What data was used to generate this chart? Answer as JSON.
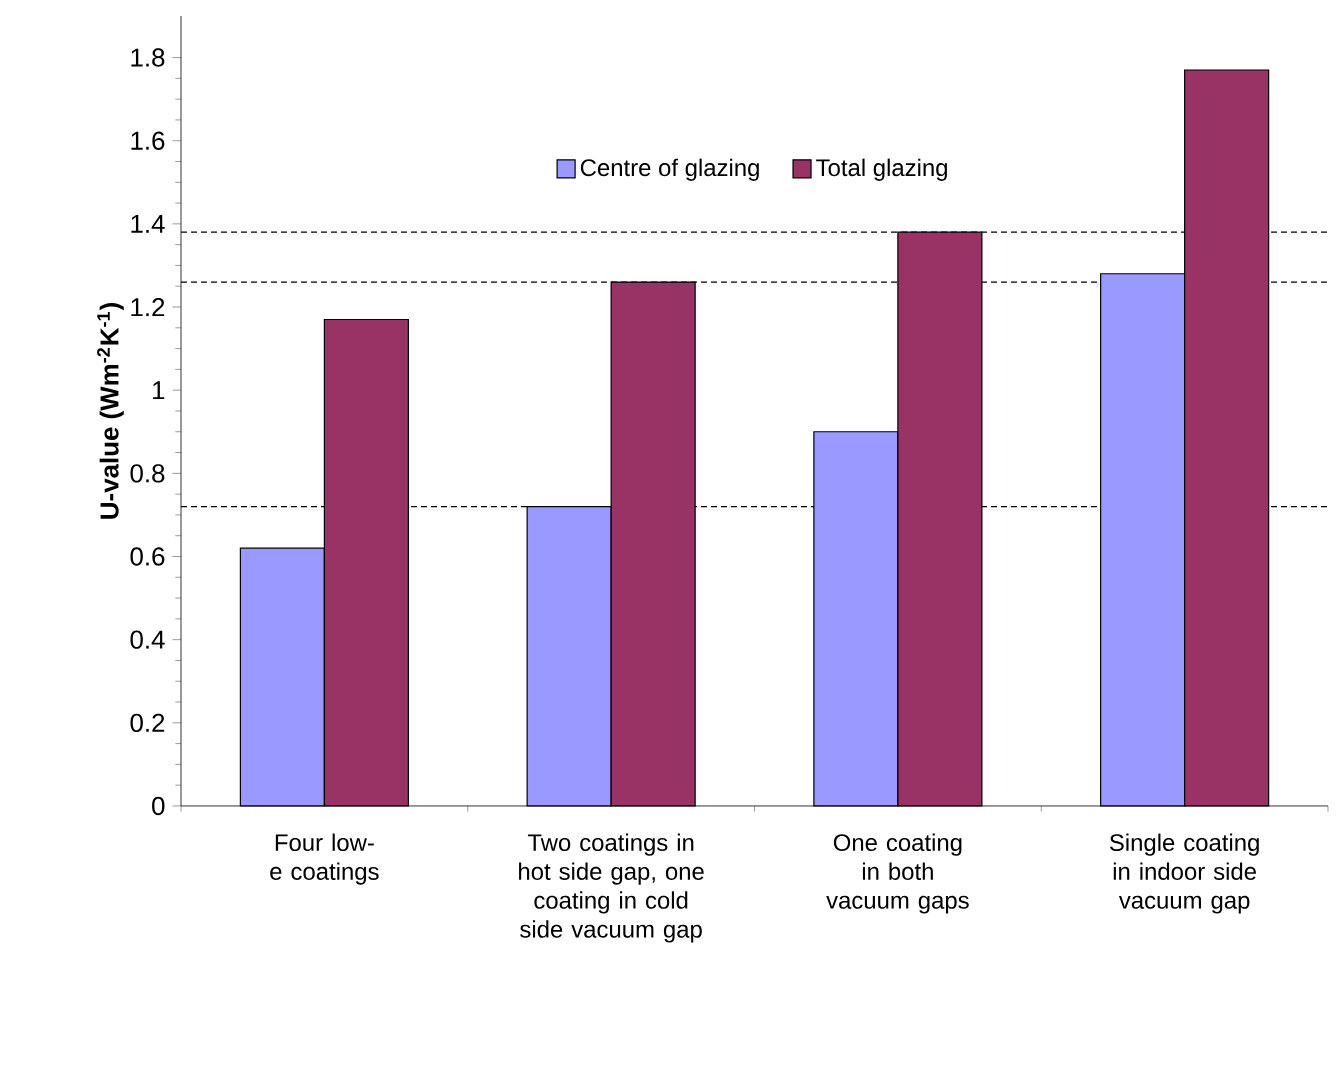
{
  "chart_data": {
    "type": "bar",
    "ylabel": "U-value (Wm$^{-2}$K$^{-1}$)",
    "categories": [
      "Four low-e coatings",
      "Two coatings in hot side gap, one coating in cold side vacuum gap",
      "One coating in both vacuum gaps",
      "Single coating in indoor side vacuum gap"
    ],
    "series": [
      {
        "name": "Centre of glazing",
        "color": "#9999ff",
        "values": [
          0.62,
          0.72,
          0.9,
          1.28
        ]
      },
      {
        "name": "Total glazing",
        "color": "#993366",
        "values": [
          1.17,
          1.26,
          1.38,
          1.77
        ]
      }
    ],
    "ylim": [
      0,
      1.9
    ],
    "yticks": [
      0,
      0.2,
      0.4,
      0.6,
      0.8,
      1,
      1.2,
      1.4,
      1.6,
      1.8
    ],
    "ref_lines": [
      {
        "axis": "y",
        "value": 1.38,
        "line_style": "dashed"
      },
      {
        "axis": "y",
        "value": 1.26,
        "line_style": "dashed"
      },
      {
        "axis": "y",
        "value": 0.72,
        "line_style": "dashed"
      }
    ],
    "legend": "top",
    "grid": false
  }
}
